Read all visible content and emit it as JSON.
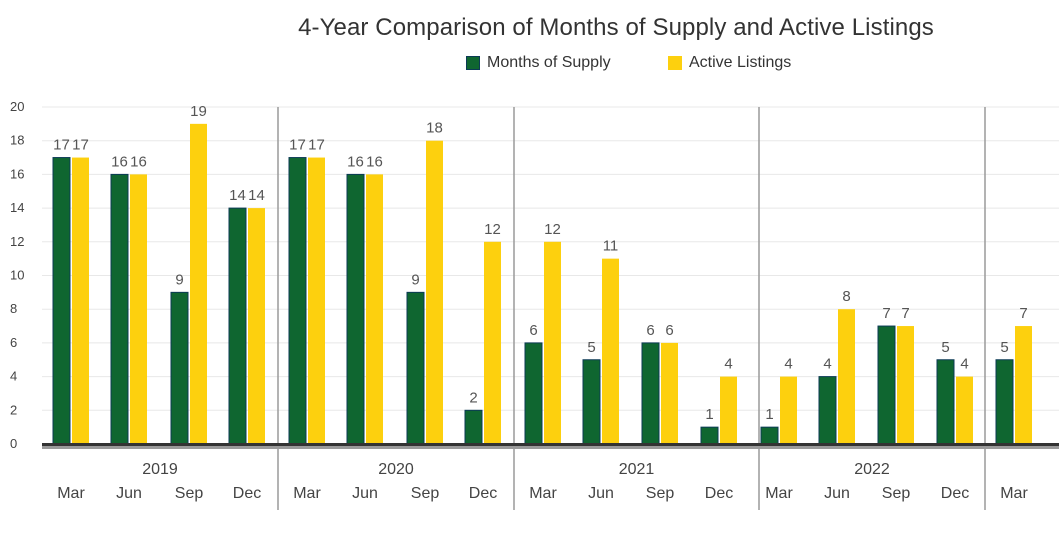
{
  "chart_data": {
    "type": "bar",
    "title": "4-Year Comparison of Months of Supply and Active Listings",
    "xlabel": "",
    "ylabel": "",
    "ylim": [
      0,
      20
    ],
    "yticks": [
      0,
      2,
      4,
      6,
      8,
      10,
      12,
      14,
      16,
      18,
      20
    ],
    "grid": true,
    "legend_position": "top-center",
    "colors": {
      "months_of_supply": "#0f6630",
      "active_listings": "#fdd00e"
    },
    "series": [
      {
        "name": "Months of Supply",
        "values": [
          17,
          16,
          9,
          14,
          17,
          16,
          9,
          2,
          6,
          5,
          6,
          1,
          1,
          4,
          7,
          5,
          5
        ]
      },
      {
        "name": "Active Listings",
        "values": [
          17,
          16,
          19,
          14,
          17,
          16,
          18,
          12,
          12,
          11,
          6,
          4,
          4,
          8,
          7,
          4,
          7
        ]
      }
    ],
    "groups": [
      {
        "year": "2019",
        "quarters": [
          "Mar",
          "Jun",
          "Sep",
          "Dec"
        ]
      },
      {
        "year": "2020",
        "quarters": [
          "Mar",
          "Jun",
          "Sep",
          "Dec"
        ]
      },
      {
        "year": "2021",
        "quarters": [
          "Mar",
          "Jun",
          "Sep",
          "Dec"
        ]
      },
      {
        "year": "2022",
        "quarters": [
          "Mar",
          "Jun",
          "Sep",
          "Dec"
        ]
      },
      {
        "year": "",
        "quarters": [
          "Mar"
        ]
      }
    ]
  }
}
